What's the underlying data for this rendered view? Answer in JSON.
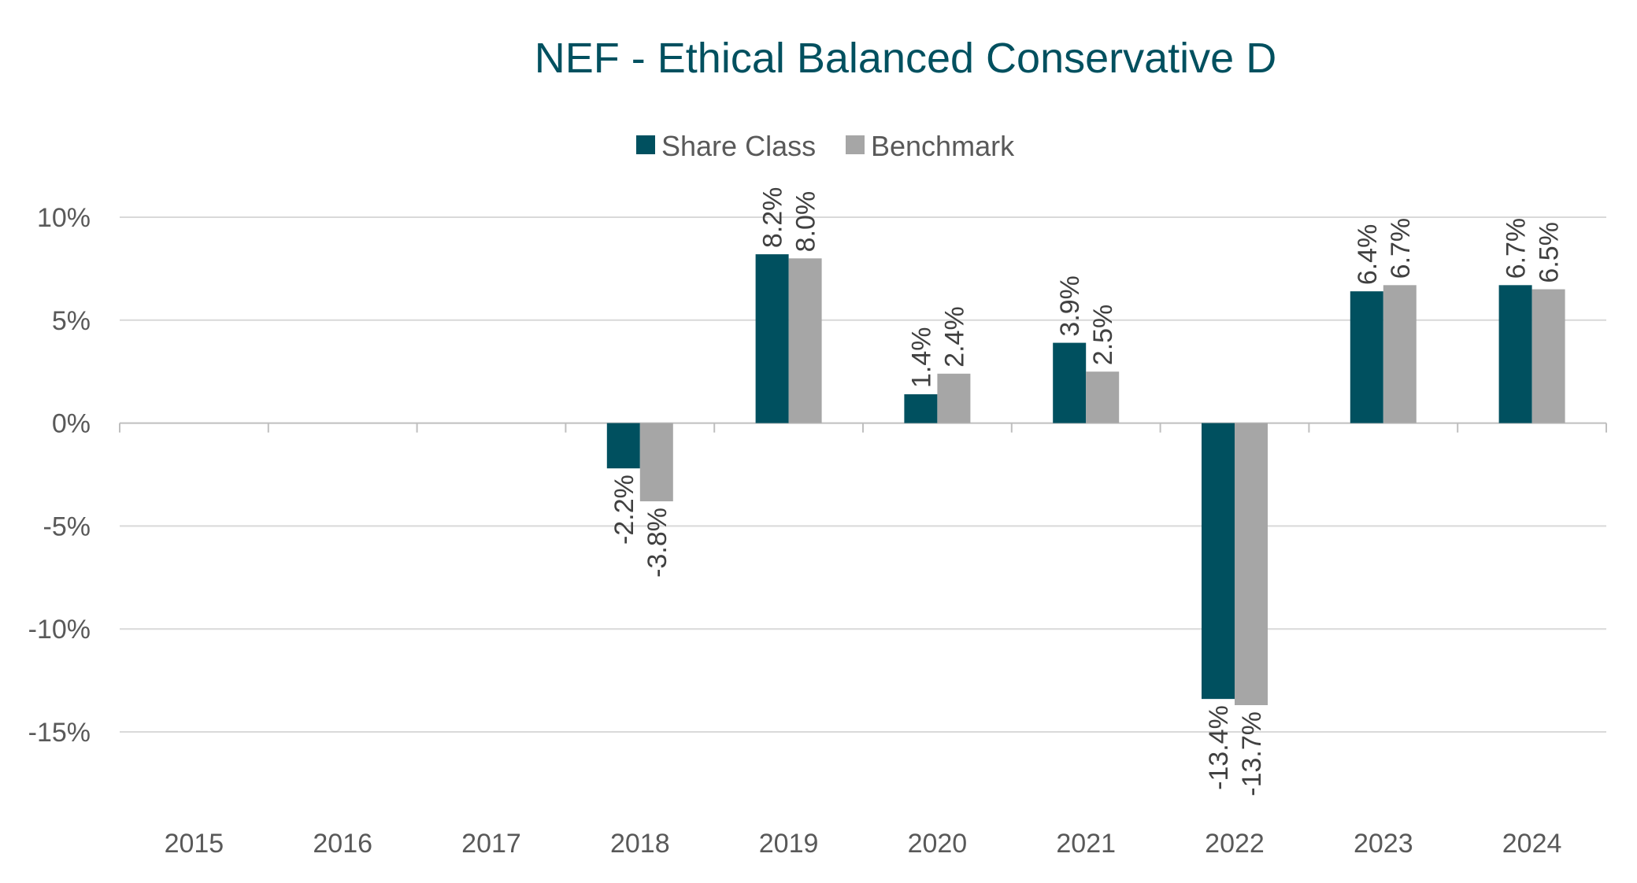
{
  "chart_data": {
    "type": "bar",
    "title": "NEF - Ethical Balanced Conservative D",
    "categories": [
      "2015",
      "2016",
      "2017",
      "2018",
      "2019",
      "2020",
      "2021",
      "2022",
      "2023",
      "2024"
    ],
    "series": [
      {
        "name": "Share Class",
        "color": "#00505f",
        "values": [
          null,
          null,
          null,
          -2.2,
          8.2,
          1.4,
          3.9,
          -13.4,
          6.4,
          6.7
        ],
        "labels": [
          "",
          "",
          "",
          "-2.2%",
          "8.2%",
          "1.4%",
          "3.9%",
          "-13.4%",
          "6.4%",
          "6.7%"
        ]
      },
      {
        "name": "Benchmark",
        "color": "#a6a6a6",
        "values": [
          null,
          null,
          null,
          -3.8,
          8.0,
          2.4,
          2.5,
          -13.7,
          6.7,
          6.5
        ],
        "labels": [
          "",
          "",
          "",
          "-3.8%",
          "8.0%",
          "2.4%",
          "2.5%",
          "-13.7%",
          "6.7%",
          "6.5%"
        ]
      }
    ],
    "y_ticks": [
      10,
      5,
      0,
      -5,
      -10,
      -15
    ],
    "y_tick_labels": [
      "10%",
      "5%",
      "0%",
      "-5%",
      "-10%",
      "-15%"
    ],
    "ylim": [
      -15,
      10
    ],
    "xlabel": "",
    "ylabel": "",
    "grid": true,
    "legend_position": "top-center",
    "title_color": "#00505f",
    "grid_color": "#d9d9d9",
    "axis_color": "#bfbfbf"
  }
}
